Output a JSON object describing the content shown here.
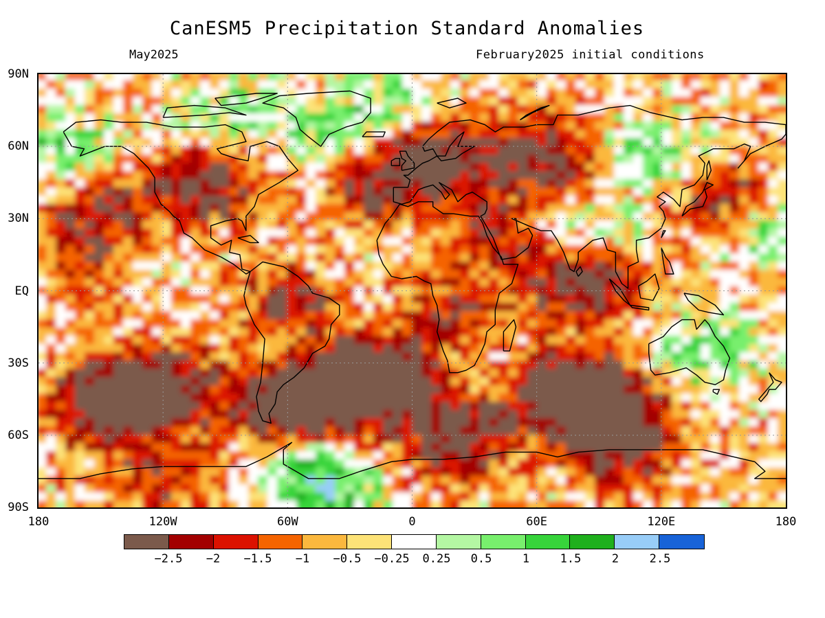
{
  "title": "CanESM5 Precipitation Standard Anomalies",
  "subtitle_left": "May2025",
  "subtitle_right": "February2025 initial conditions",
  "map": {
    "projection": "equirectangular",
    "lat_range": [
      -90,
      90
    ],
    "lon_range": [
      -180,
      180
    ],
    "lat_labels": [
      "90N",
      "60N",
      "30N",
      "EQ",
      "30S",
      "60S",
      "90S"
    ],
    "lat_values": [
      90,
      60,
      30,
      0,
      -30,
      -60,
      -90
    ],
    "lon_labels": [
      "180",
      "120W",
      "60W",
      "0",
      "60E",
      "120E",
      "180"
    ],
    "lon_values": [
      -180,
      -120,
      -60,
      0,
      60,
      120,
      180
    ]
  },
  "colorbar": {
    "colors": [
      "#7b5a4b",
      "#a30000",
      "#dc1200",
      "#f56400",
      "#fbb83e",
      "#fde378",
      "#ffffff",
      "#b4f7a3",
      "#78ef6d",
      "#37d43b",
      "#1fb01d",
      "#98cdf8",
      "#1863d8"
    ],
    "labels": [
      "-2.5",
      "-2",
      "-1.5",
      "-1",
      "-0.5",
      "-0.25",
      "0.25",
      "0.5",
      "1",
      "1.5",
      "2",
      "2.5"
    ]
  }
}
